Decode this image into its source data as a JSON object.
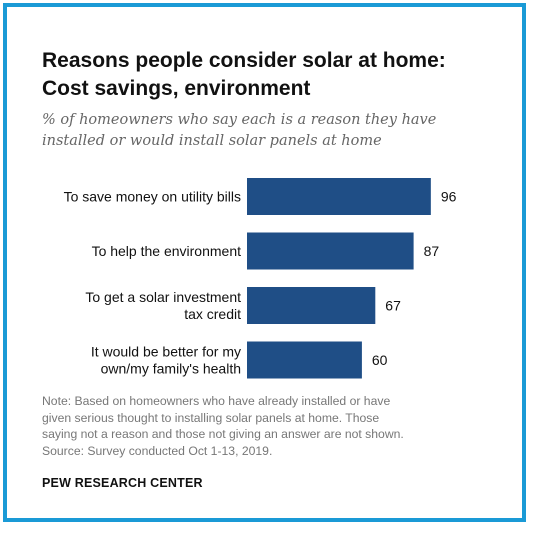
{
  "title_lines": [
    "Reasons people consider solar at home:",
    "Cost savings, environment"
  ],
  "subtitle_lines": [
    "% of homeowners who say each is a reason they have",
    "installed or would install solar panels at home"
  ],
  "chart_data": {
    "type": "bar",
    "orientation": "horizontal",
    "categories": [
      [
        "To save money on utility bills"
      ],
      [
        "To help the environment"
      ],
      [
        "To get a solar investment",
        "tax credit"
      ],
      [
        "It would be better for my",
        "own/my family's health"
      ]
    ],
    "values": [
      96,
      87,
      67,
      60
    ],
    "value_labels": [
      "96",
      "87",
      "67",
      "60"
    ],
    "bar_color": "#1f4e86",
    "xlim": [
      0,
      100
    ],
    "grid": false,
    "legend": "none"
  },
  "note_lines": [
    "Note: Based on homeowners who have already installed or have",
    "given serious thought to installing solar panels at home. Those",
    "saying not a reason and those not giving an answer are not shown.",
    "Source: Survey conducted Oct 1-13, 2019."
  ],
  "brand": "PEW RESEARCH CENTER",
  "colors": {
    "frame": "#1a9ad6",
    "bar": "#1f4e86",
    "note_text": "#777777",
    "subtitle_text": "#666666"
  }
}
